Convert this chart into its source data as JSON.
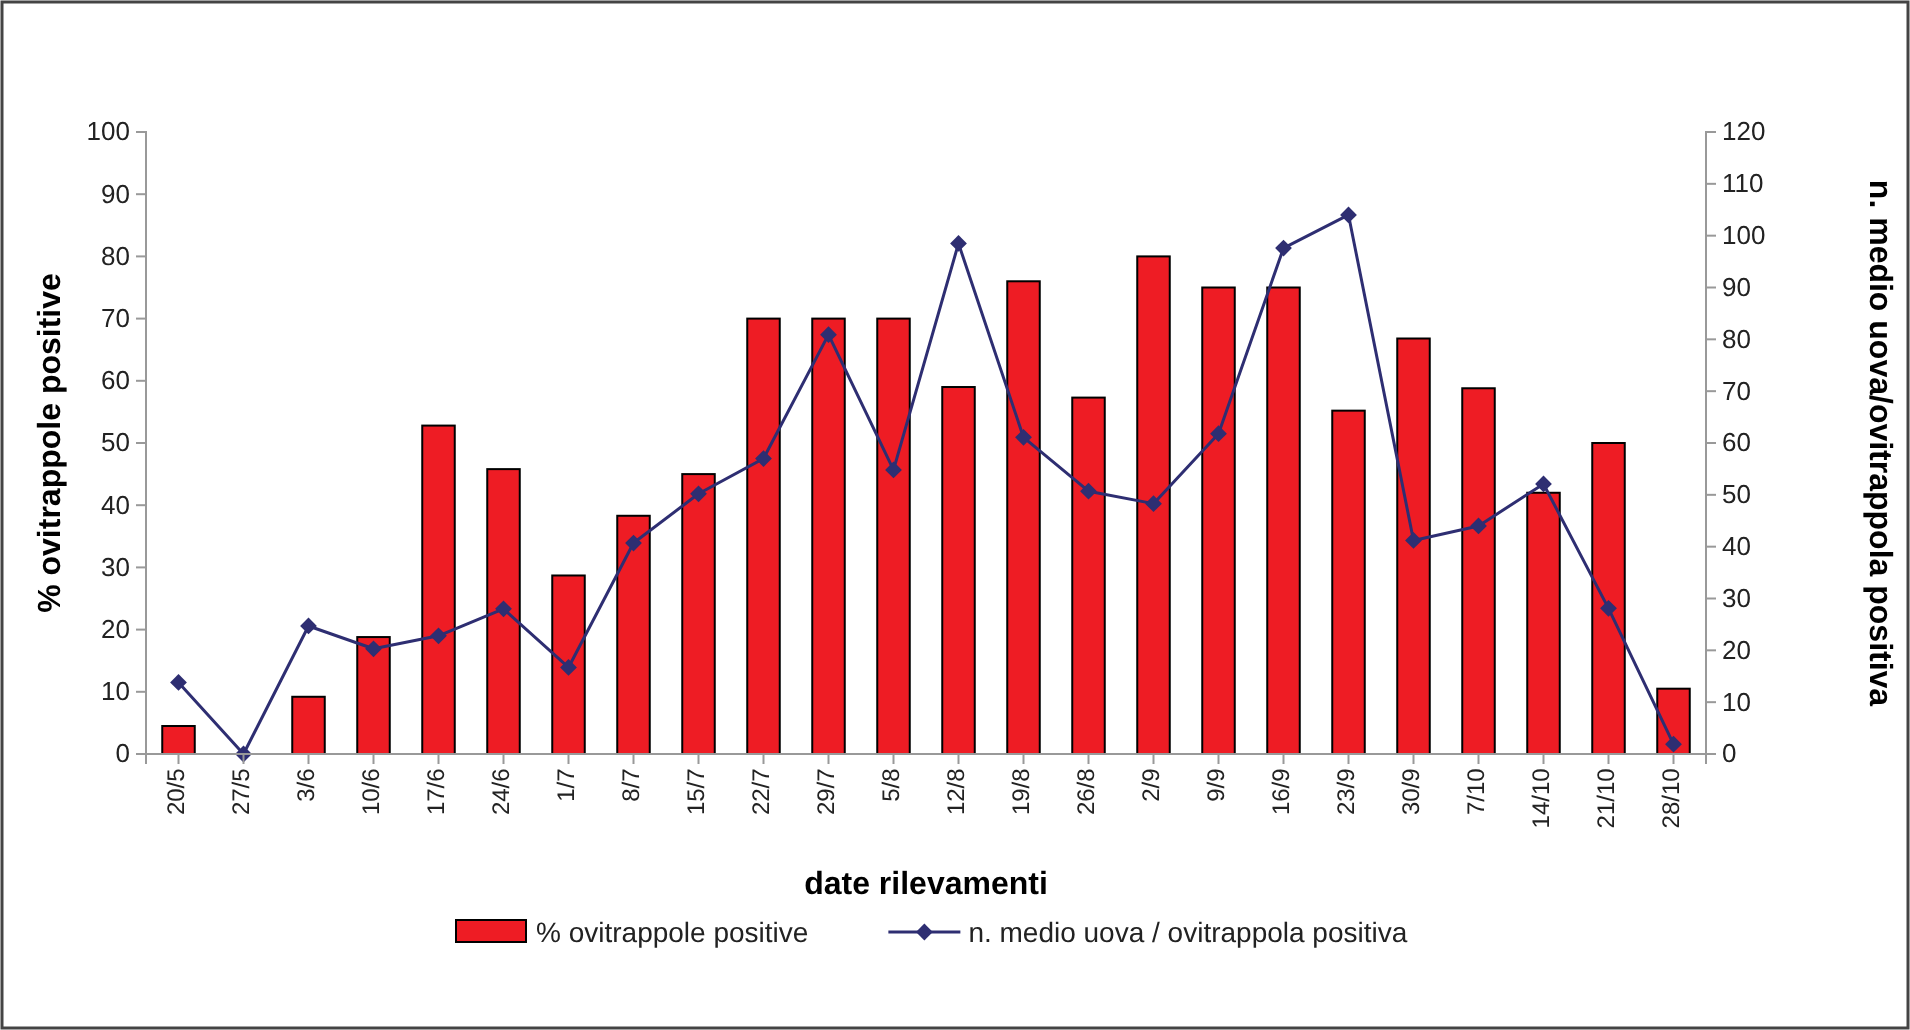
{
  "chart_data": {
    "type": "bar",
    "xlabel": "date rilevamenti",
    "ylabel": "% ovitrappole positive",
    "y2label": "n. medio uova/ovitrappola positiva",
    "categories": [
      "20/5",
      "27/5",
      "3/6",
      "10/6",
      "17/6",
      "24/6",
      "1/7",
      "8/7",
      "15/7",
      "22/7",
      "29/7",
      "5/8",
      "12/8",
      "19/8",
      "26/8",
      "2/9",
      "9/9",
      "16/9",
      "23/9",
      "30/9",
      "7/10",
      "14/10",
      "21/10",
      "28/10"
    ],
    "series": [
      {
        "name": "% ovitrappole positive",
        "color": "#ee1c24",
        "values": [
          4.5,
          0,
          9.2,
          18.8,
          52.8,
          45.8,
          28.7,
          38.3,
          45,
          70,
          70,
          70,
          59,
          76,
          57.3,
          80,
          75,
          75,
          55.2,
          66.8,
          58.8,
          42,
          50,
          10.5
        ]
      },
      {
        "name": "n. medio uova / ovitrappola positiva",
        "type": "line",
        "axis": "y2",
        "color": "#2e2e72",
        "marker": "diamond",
        "values": [
          13.8,
          0,
          24.7,
          20.3,
          22.8,
          28,
          16.7,
          40.7,
          50.2,
          57,
          80.9,
          54.8,
          98.5,
          61.1,
          50.7,
          48.3,
          61.8,
          97.6,
          104,
          41.2,
          44,
          52.1,
          28.1,
          1.9
        ]
      }
    ],
    "ylim": [
      0,
      100
    ],
    "yticks": [
      0,
      10,
      20,
      30,
      40,
      50,
      60,
      70,
      80,
      90,
      100
    ],
    "y2lim": [
      0,
      120
    ],
    "y2ticks": [
      0,
      10,
      20,
      30,
      40,
      50,
      60,
      70,
      80,
      90,
      100,
      110,
      120
    ],
    "grid": false,
    "legend": "bottom"
  }
}
